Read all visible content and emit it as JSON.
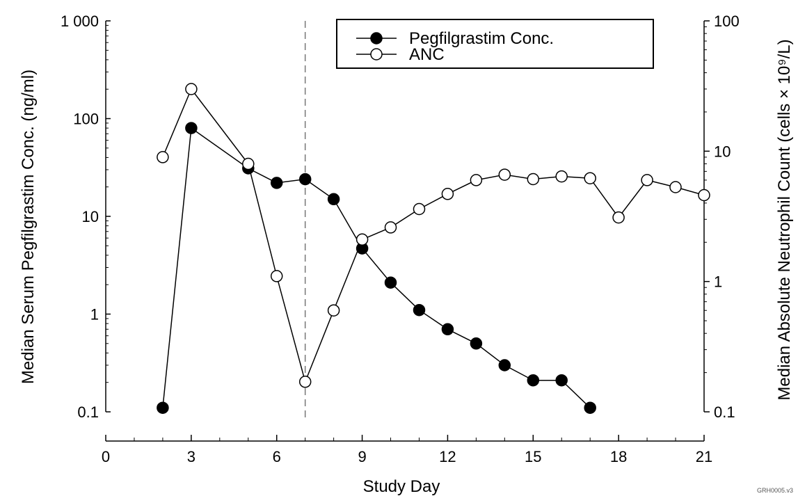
{
  "chart_data": {
    "type": "line",
    "xlabel": "Study Day",
    "ylabel_left": "Median Serum Pegfilgrastim Conc. (ng/ml)",
    "ylabel_right": "Median Absolute Neutrophil Count (cells × 10⁹/L)",
    "x_ticks": [
      0,
      3,
      6,
      9,
      12,
      15,
      18,
      21
    ],
    "x_tick_labels": [
      "0",
      "3",
      "6",
      "9",
      "12",
      "15",
      "18",
      "21"
    ],
    "xlim": [
      0,
      21
    ],
    "y_left_scale": "log",
    "y_left_lim": [
      0.1,
      1000
    ],
    "y_left_ticks": [
      0.1,
      1,
      10,
      100,
      1000
    ],
    "y_left_tick_labels": [
      "0.1",
      "1",
      "10",
      "100",
      "1 000"
    ],
    "y_right_scale": "log",
    "y_right_lim": [
      0.1,
      100
    ],
    "y_right_ticks": [
      0.1,
      1,
      10,
      100
    ],
    "y_right_tick_labels": [
      "0.1",
      "1",
      "10",
      "100"
    ],
    "vertical_reference_line_x": 7,
    "legend_position": "top-right",
    "series": [
      {
        "name": "Pegfilgrastim Conc.",
        "axis": "left",
        "marker": "filled-circle",
        "x": [
          2,
          3,
          5,
          6,
          7,
          8,
          9,
          10,
          11,
          12,
          13,
          14,
          15,
          16,
          17
        ],
        "y": [
          0.11,
          80,
          31,
          22,
          24,
          15,
          4.7,
          2.1,
          1.1,
          0.7,
          0.5,
          0.3,
          0.21,
          0.21,
          0.11
        ]
      },
      {
        "name": "ANC",
        "axis": "right",
        "marker": "open-circle",
        "x": [
          2,
          3,
          5,
          6,
          7,
          8,
          9,
          10,
          11,
          12,
          13,
          14,
          15,
          16,
          17,
          18,
          19,
          20,
          21
        ],
        "y": [
          9,
          30,
          8,
          1.1,
          0.17,
          0.6,
          2.1,
          2.6,
          3.6,
          4.7,
          6,
          6.6,
          6.1,
          6.4,
          6.2,
          3.1,
          6,
          5.3,
          4.6
        ]
      }
    ],
    "footnote": "GRH0005.v3"
  }
}
